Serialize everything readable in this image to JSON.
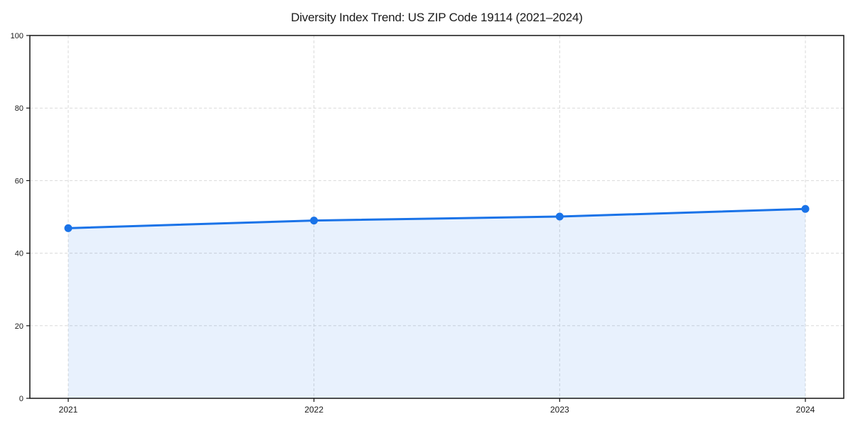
{
  "figure": {
    "background": "#ffffff"
  },
  "chart_data": {
    "type": "line",
    "title": "Diversity Index Trend: US ZIP Code 19114 (2021–2024)",
    "xlabel": "",
    "ylabel": "",
    "categories": [
      "2021",
      "2022",
      "2023",
      "2024"
    ],
    "series": [
      {
        "name": "Diversity Index",
        "values": [
          46.9,
          49.0,
          50.1,
          52.2
        ]
      }
    ],
    "ylim": [
      0,
      100
    ],
    "yticks": [
      0,
      20,
      40,
      60,
      80,
      100
    ],
    "grid": true,
    "grid_style": "dashed",
    "legend": "none",
    "area": true,
    "marker": "circle",
    "line_color": "#1a73e8",
    "marker_color": "#1a73e8",
    "fill_color": "#1a73e8",
    "fill_opacity": 0.1,
    "grid_color": "#d9d9d9",
    "axis_color": "#141414",
    "tick_label_color": "#1a1a1a"
  }
}
